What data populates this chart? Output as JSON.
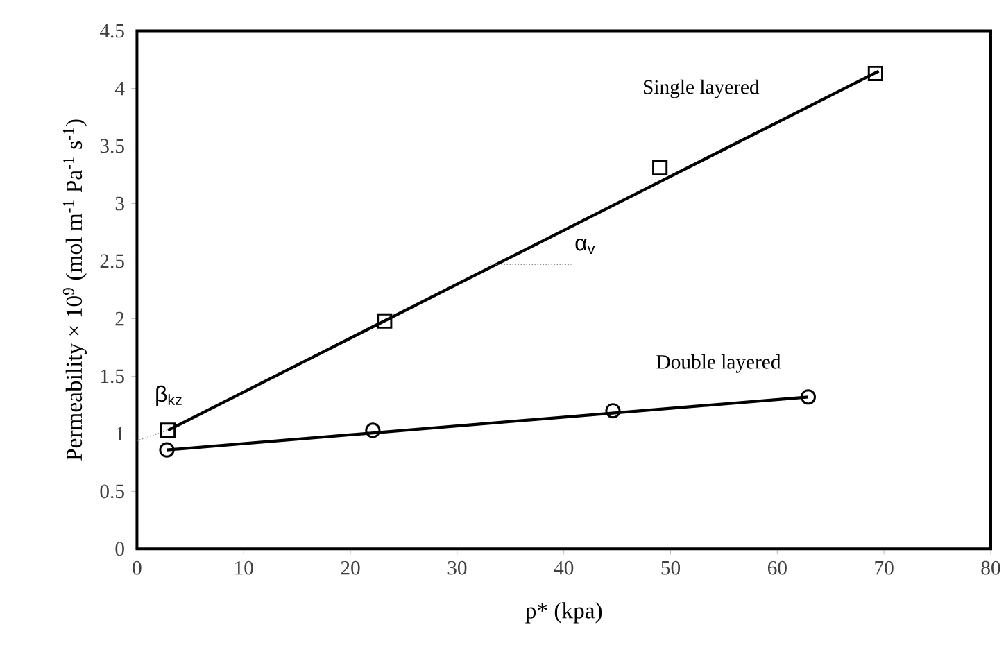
{
  "chart_data": {
    "type": "scatter",
    "xlabel": "p* (kpa)",
    "ylabel": "Permeability × 10$^{9}$ (mol m$^{-1}$ Pa$^{-1}$ s$^{-1}$)",
    "xlim": [
      0,
      80
    ],
    "ylim": [
      0,
      4.5
    ],
    "xticks": [
      0,
      10,
      20,
      30,
      40,
      50,
      60,
      70,
      80
    ],
    "yticks": [
      0,
      0.5,
      1,
      1.5,
      2,
      2.5,
      3,
      3.5,
      4,
      4.5
    ],
    "grid": false,
    "legend": false,
    "series": [
      {
        "marker": "square",
        "color": "#000000",
        "x": [
          2.9,
          23.2,
          49.0,
          69.2
        ],
        "values": [
          1.03,
          1.98,
          3.31,
          4.13
        ]
      },
      {
        "type": "line",
        "name": "Single layered",
        "marker": "none",
        "line_style": "solid",
        "color": "#000000",
        "x": [
          2.9,
          69.5
        ],
        "values": [
          1.03,
          4.15
        ]
      },
      {
        "marker": "circle",
        "color": "#000000",
        "x": [
          2.8,
          22.1,
          44.6,
          62.9
        ],
        "values": [
          0.86,
          1.03,
          1.2,
          1.32
        ]
      },
      {
        "type": "line",
        "name": "Double layered",
        "marker": "none",
        "line_style": "solid",
        "color": "#000000",
        "x": [
          2.8,
          62.9
        ],
        "values": [
          0.86,
          1.32
        ]
      },
      {
        "type": "line",
        "marker": "none",
        "line_style": "dotted",
        "color": "#808080",
        "x": [
          0,
          2.9
        ],
        "values": [
          0.94,
          1.03
        ]
      },
      {
        "type": "line",
        "marker": "none",
        "line_style": "dotted",
        "color": "#808080",
        "x": [
          33.1,
          40.7
        ],
        "values": [
          2.47,
          2.47
        ]
      }
    ],
    "annotations": [
      "α$_{v}$",
      "β$_{kz}$"
    ]
  }
}
